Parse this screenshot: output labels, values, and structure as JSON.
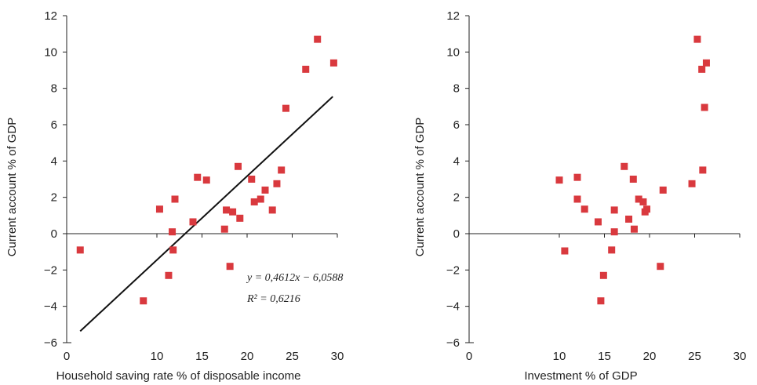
{
  "colors": {
    "marker": "#d9393e",
    "axis": "#222222",
    "trend": "#111111"
  },
  "chart_data": [
    {
      "type": "scatter",
      "xlabel": "Household saving rate % of disposable income",
      "ylabel": "Current account % of GDP",
      "xlim": [
        0,
        30
      ],
      "ylim": [
        -6,
        12
      ],
      "xticks": [
        "0",
        "10",
        "15",
        "20",
        "25",
        "30"
      ],
      "xtick_values": [
        0,
        10,
        15,
        20,
        25,
        30
      ],
      "yticks": [
        "−6",
        "−4",
        "−2",
        "0",
        "2",
        "4",
        "6",
        "8",
        "10",
        "12"
      ],
      "ytick_values": [
        -6,
        -4,
        -2,
        0,
        2,
        4,
        6,
        8,
        10,
        12
      ],
      "points": [
        [
          1.5,
          -0.9
        ],
        [
          8.5,
          -3.7
        ],
        [
          10.3,
          1.35
        ],
        [
          11.3,
          -2.3
        ],
        [
          11.7,
          0.1
        ],
        [
          11.8,
          -0.9
        ],
        [
          12.0,
          1.9
        ],
        [
          14.0,
          0.65
        ],
        [
          14.5,
          3.1
        ],
        [
          15.5,
          2.95
        ],
        [
          17.5,
          0.25
        ],
        [
          17.7,
          1.3
        ],
        [
          18.1,
          -1.8
        ],
        [
          18.4,
          1.2
        ],
        [
          19.0,
          3.7
        ],
        [
          19.2,
          0.85
        ],
        [
          20.5,
          3.0
        ],
        [
          20.8,
          1.75
        ],
        [
          21.5,
          1.9
        ],
        [
          22.0,
          2.4
        ],
        [
          22.8,
          1.3
        ],
        [
          23.3,
          2.75
        ],
        [
          23.8,
          3.5
        ],
        [
          24.3,
          6.9
        ],
        [
          26.5,
          9.05
        ],
        [
          27.8,
          10.7
        ],
        [
          29.6,
          9.4
        ]
      ],
      "trendline": {
        "slope": 0.4612,
        "intercept": -6.0588,
        "x_range": [
          1.5,
          29.5
        ]
      },
      "annotations": [
        "y = 0,4612x − 6,0588",
        "R² = 0,6216"
      ]
    },
    {
      "type": "scatter",
      "xlabel": "Investment % of GDP",
      "ylabel": "Current account % of GDP",
      "xlim": [
        0,
        30
      ],
      "ylim": [
        -6,
        12
      ],
      "xticks": [
        "0",
        "10",
        "15",
        "20",
        "25",
        "30"
      ],
      "xtick_values": [
        0,
        10,
        15,
        20,
        25,
        30
      ],
      "yticks": [
        "−6",
        "−4",
        "−2",
        "0",
        "2",
        "4",
        "6",
        "8",
        "10",
        "12"
      ],
      "ytick_values": [
        -6,
        -4,
        -2,
        0,
        2,
        4,
        6,
        8,
        10,
        12
      ],
      "points": [
        [
          10.0,
          2.95
        ],
        [
          10.6,
          -0.95
        ],
        [
          12.0,
          3.1
        ],
        [
          12.0,
          1.9
        ],
        [
          12.8,
          1.35
        ],
        [
          14.3,
          0.65
        ],
        [
          14.6,
          -3.7
        ],
        [
          14.9,
          -2.3
        ],
        [
          15.8,
          -0.9
        ],
        [
          16.1,
          0.1
        ],
        [
          16.1,
          1.3
        ],
        [
          17.2,
          3.7
        ],
        [
          17.7,
          0.8
        ],
        [
          18.2,
          3.0
        ],
        [
          18.3,
          0.25
        ],
        [
          18.8,
          1.9
        ],
        [
          19.3,
          1.75
        ],
        [
          19.5,
          1.2
        ],
        [
          19.7,
          1.35
        ],
        [
          21.2,
          -1.8
        ],
        [
          21.5,
          2.4
        ],
        [
          24.7,
          2.75
        ],
        [
          25.3,
          10.7
        ],
        [
          25.8,
          9.05
        ],
        [
          25.9,
          3.5
        ],
        [
          26.1,
          6.95
        ],
        [
          26.3,
          9.4
        ]
      ]
    }
  ]
}
